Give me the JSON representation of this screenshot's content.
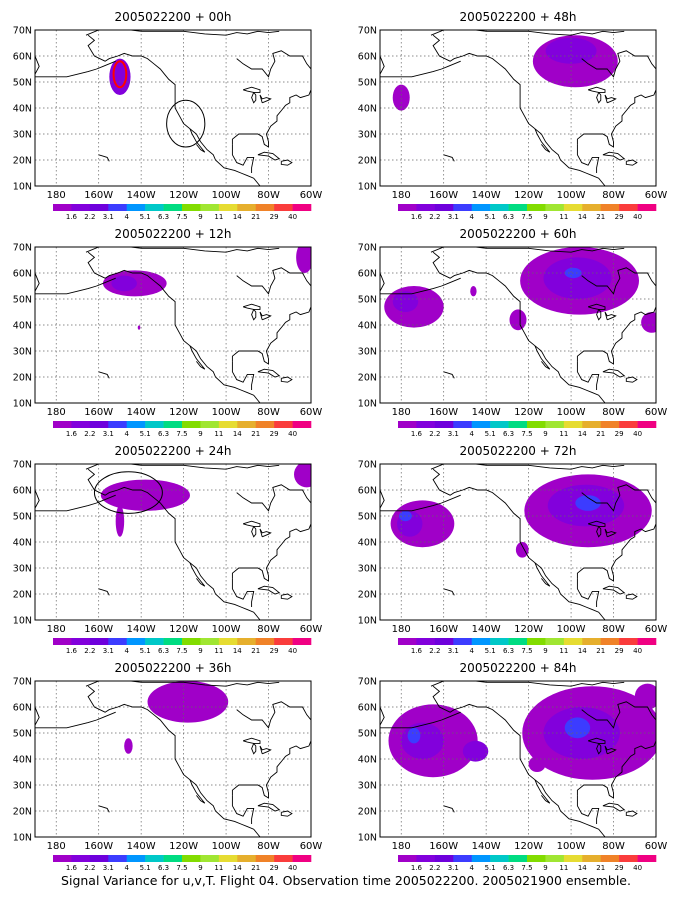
{
  "base_label": "2005022200",
  "lead_times": [
    "+ 00h",
    "+ 12h",
    "+ 24h",
    "+ 36h",
    "+ 48h",
    "+ 60h",
    "+ 72h",
    "+ 84h"
  ],
  "panels": [
    {
      "title": "2005022200 + 00h",
      "blobs": [
        {
          "cx": -150,
          "cy": 52,
          "rx": 5,
          "ry": 7,
          "level": 1
        }
      ],
      "contours": [
        {
          "kind": "ellipse",
          "cx": -150,
          "cy": 53,
          "rx": 3,
          "ry": 5,
          "color": "#ff0000"
        },
        {
          "kind": "circle",
          "cx": -119,
          "cy": 34,
          "rx": 9,
          "ry": 9,
          "color": "#000000"
        }
      ]
    },
    {
      "title": "2005022200 + 12h",
      "blobs": [
        {
          "cx": -143,
          "cy": 56,
          "rx": 15,
          "ry": 5,
          "level": 0
        },
        {
          "cx": -148,
          "cy": 56,
          "rx": 6,
          "ry": 3,
          "level": 1
        },
        {
          "cx": -63,
          "cy": 66,
          "rx": 4,
          "ry": 6,
          "level": 0
        },
        {
          "cx": -141,
          "cy": 39,
          "rx": 0.6,
          "ry": 0.8,
          "level": 0
        }
      ],
      "contours": []
    },
    {
      "title": "2005022200 + 24h",
      "blobs": [
        {
          "cx": -138,
          "cy": 58,
          "rx": 21,
          "ry": 6,
          "level": 0
        },
        {
          "cx": -150,
          "cy": 48,
          "rx": 2,
          "ry": 6,
          "level": 0
        },
        {
          "cx": -62,
          "cy": 66,
          "rx": 6,
          "ry": 5,
          "level": 0
        }
      ],
      "contours": [
        {
          "kind": "ellipse",
          "cx": -146,
          "cy": 59,
          "rx": 16,
          "ry": 8,
          "color": "#000000"
        }
      ]
    },
    {
      "title": "2005022200 + 36h",
      "blobs": [
        {
          "cx": -118,
          "cy": 62,
          "rx": 19,
          "ry": 8,
          "level": 0
        },
        {
          "cx": -146,
          "cy": 45,
          "rx": 2,
          "ry": 3,
          "level": 0
        }
      ],
      "contours": []
    },
    {
      "title": "2005022200 + 48h",
      "blobs": [
        {
          "cx": -98,
          "cy": 58,
          "rx": 20,
          "ry": 10,
          "level": 0
        },
        {
          "cx": -100,
          "cy": 62,
          "rx": 12,
          "ry": 5,
          "level": 1
        },
        {
          "cx": -180,
          "cy": 44,
          "rx": 4,
          "ry": 5,
          "level": 0
        }
      ],
      "contours": []
    },
    {
      "title": "2005022200 + 60h",
      "blobs": [
        {
          "cx": -96,
          "cy": 57,
          "rx": 28,
          "ry": 13,
          "level": 0
        },
        {
          "cx": -97,
          "cy": 58,
          "rx": 16,
          "ry": 8,
          "level": 1
        },
        {
          "cx": -99,
          "cy": 60,
          "rx": 4,
          "ry": 2,
          "level": 3
        },
        {
          "cx": -174,
          "cy": 47,
          "rx": 14,
          "ry": 8,
          "level": 0
        },
        {
          "cx": -178,
          "cy": 49,
          "rx": 6,
          "ry": 4,
          "level": 1
        },
        {
          "cx": -62,
          "cy": 41,
          "rx": 5,
          "ry": 4,
          "level": 0
        },
        {
          "cx": -125,
          "cy": 42,
          "rx": 4,
          "ry": 4,
          "level": 0
        },
        {
          "cx": -146,
          "cy": 53,
          "rx": 1.5,
          "ry": 2,
          "level": 0
        }
      ],
      "contours": []
    },
    {
      "title": "2005022200 + 72h",
      "blobs": [
        {
          "cx": -92,
          "cy": 52,
          "rx": 30,
          "ry": 14,
          "level": 0
        },
        {
          "cx": -93,
          "cy": 54,
          "rx": 18,
          "ry": 8,
          "level": 1
        },
        {
          "cx": -92,
          "cy": 55,
          "rx": 6,
          "ry": 3,
          "level": 3
        },
        {
          "cx": -170,
          "cy": 47,
          "rx": 15,
          "ry": 9,
          "level": 0
        },
        {
          "cx": -176,
          "cy": 47,
          "rx": 6,
          "ry": 5,
          "level": 1
        },
        {
          "cx": -178,
          "cy": 50,
          "rx": 3,
          "ry": 2,
          "level": 3
        },
        {
          "cx": -123,
          "cy": 37,
          "rx": 3,
          "ry": 3,
          "level": 0
        }
      ],
      "contours": []
    },
    {
      "title": "2005022200 + 84h",
      "blobs": [
        {
          "cx": -90,
          "cy": 50,
          "rx": 33,
          "ry": 18,
          "level": 0
        },
        {
          "cx": -95,
          "cy": 50,
          "rx": 18,
          "ry": 10,
          "level": 1
        },
        {
          "cx": -97,
          "cy": 52,
          "rx": 6,
          "ry": 4,
          "level": 3
        },
        {
          "cx": -165,
          "cy": 47,
          "rx": 21,
          "ry": 14,
          "level": 0
        },
        {
          "cx": -170,
          "cy": 47,
          "rx": 10,
          "ry": 7,
          "level": 1
        },
        {
          "cx": -174,
          "cy": 49,
          "rx": 3,
          "ry": 3,
          "level": 3
        },
        {
          "cx": -145,
          "cy": 43,
          "rx": 6,
          "ry": 4,
          "level": 1
        },
        {
          "cx": -116,
          "cy": 38,
          "rx": 4,
          "ry": 3,
          "level": 0
        },
        {
          "cx": -64,
          "cy": 64,
          "rx": 6,
          "ry": 5,
          "level": 0
        }
      ],
      "contours": []
    }
  ],
  "map": {
    "lon_range": [
      -190,
      -60
    ],
    "lat_range": [
      10,
      70
    ],
    "x_ticks": [
      {
        "lon": -180,
        "label": "180"
      },
      {
        "lon": -160,
        "label": "160W"
      },
      {
        "lon": -140,
        "label": "140W"
      },
      {
        "lon": -120,
        "label": "120W"
      },
      {
        "lon": -100,
        "label": "100W"
      },
      {
        "lon": -80,
        "label": "80W"
      },
      {
        "lon": -60,
        "label": "60W"
      }
    ],
    "y_ticks": [
      {
        "lat": 10,
        "label": "10N"
      },
      {
        "lat": 20,
        "label": "20N"
      },
      {
        "lat": 30,
        "label": "30N"
      },
      {
        "lat": 40,
        "label": "40N"
      },
      {
        "lat": 50,
        "label": "50N"
      },
      {
        "lat": 60,
        "label": "60N"
      },
      {
        "lat": 70,
        "label": "70N"
      }
    ]
  },
  "colorbar": {
    "labels": [
      "1.6",
      "2.2",
      "3.1",
      "4",
      "5.1",
      "6.3",
      "7.5",
      "9",
      "11",
      "14",
      "21",
      "29",
      "40"
    ],
    "colors": [
      "#a000c8",
      "#8200dc",
      "#6e00dc",
      "#3c3cff",
      "#0096ff",
      "#00c8c8",
      "#00dc82",
      "#82dc00",
      "#a0e632",
      "#e6dc32",
      "#e6af2d",
      "#f08228",
      "#fa3c3c",
      "#f00082"
    ]
  },
  "caption": "Signal Variance for u,v,T. Flight 04. Observation time 2005022200. 2005021900 ensemble."
}
